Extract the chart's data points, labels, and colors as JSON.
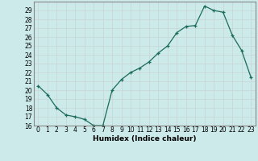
{
  "x": [
    0,
    1,
    2,
    3,
    4,
    5,
    6,
    7,
    8,
    9,
    10,
    11,
    12,
    13,
    14,
    15,
    16,
    17,
    18,
    19,
    20,
    21,
    22,
    23
  ],
  "y": [
    20.5,
    19.5,
    18.0,
    17.2,
    17.0,
    16.7,
    16.0,
    16.0,
    20.0,
    21.2,
    22.0,
    22.5,
    23.2,
    24.2,
    25.0,
    26.5,
    27.2,
    27.3,
    29.5,
    29.0,
    28.8,
    26.2,
    24.5,
    21.5
  ],
  "xlabel": "Humidex (Indice chaleur)",
  "ylim": [
    16,
    30
  ],
  "xlim": [
    -0.5,
    23.5
  ],
  "yticks": [
    16,
    17,
    18,
    19,
    20,
    21,
    22,
    23,
    24,
    25,
    26,
    27,
    28,
    29
  ],
  "xticks": [
    0,
    1,
    2,
    3,
    4,
    5,
    6,
    7,
    8,
    9,
    10,
    11,
    12,
    13,
    14,
    15,
    16,
    17,
    18,
    19,
    20,
    21,
    22,
    23
  ],
  "line_color": "#1a6b5a",
  "marker": "+",
  "bg_color": "#cceaea",
  "grid_color": "#c8d8d8",
  "border_color": "#888888",
  "tick_fontsize": 5.5,
  "xlabel_fontsize": 6.5
}
